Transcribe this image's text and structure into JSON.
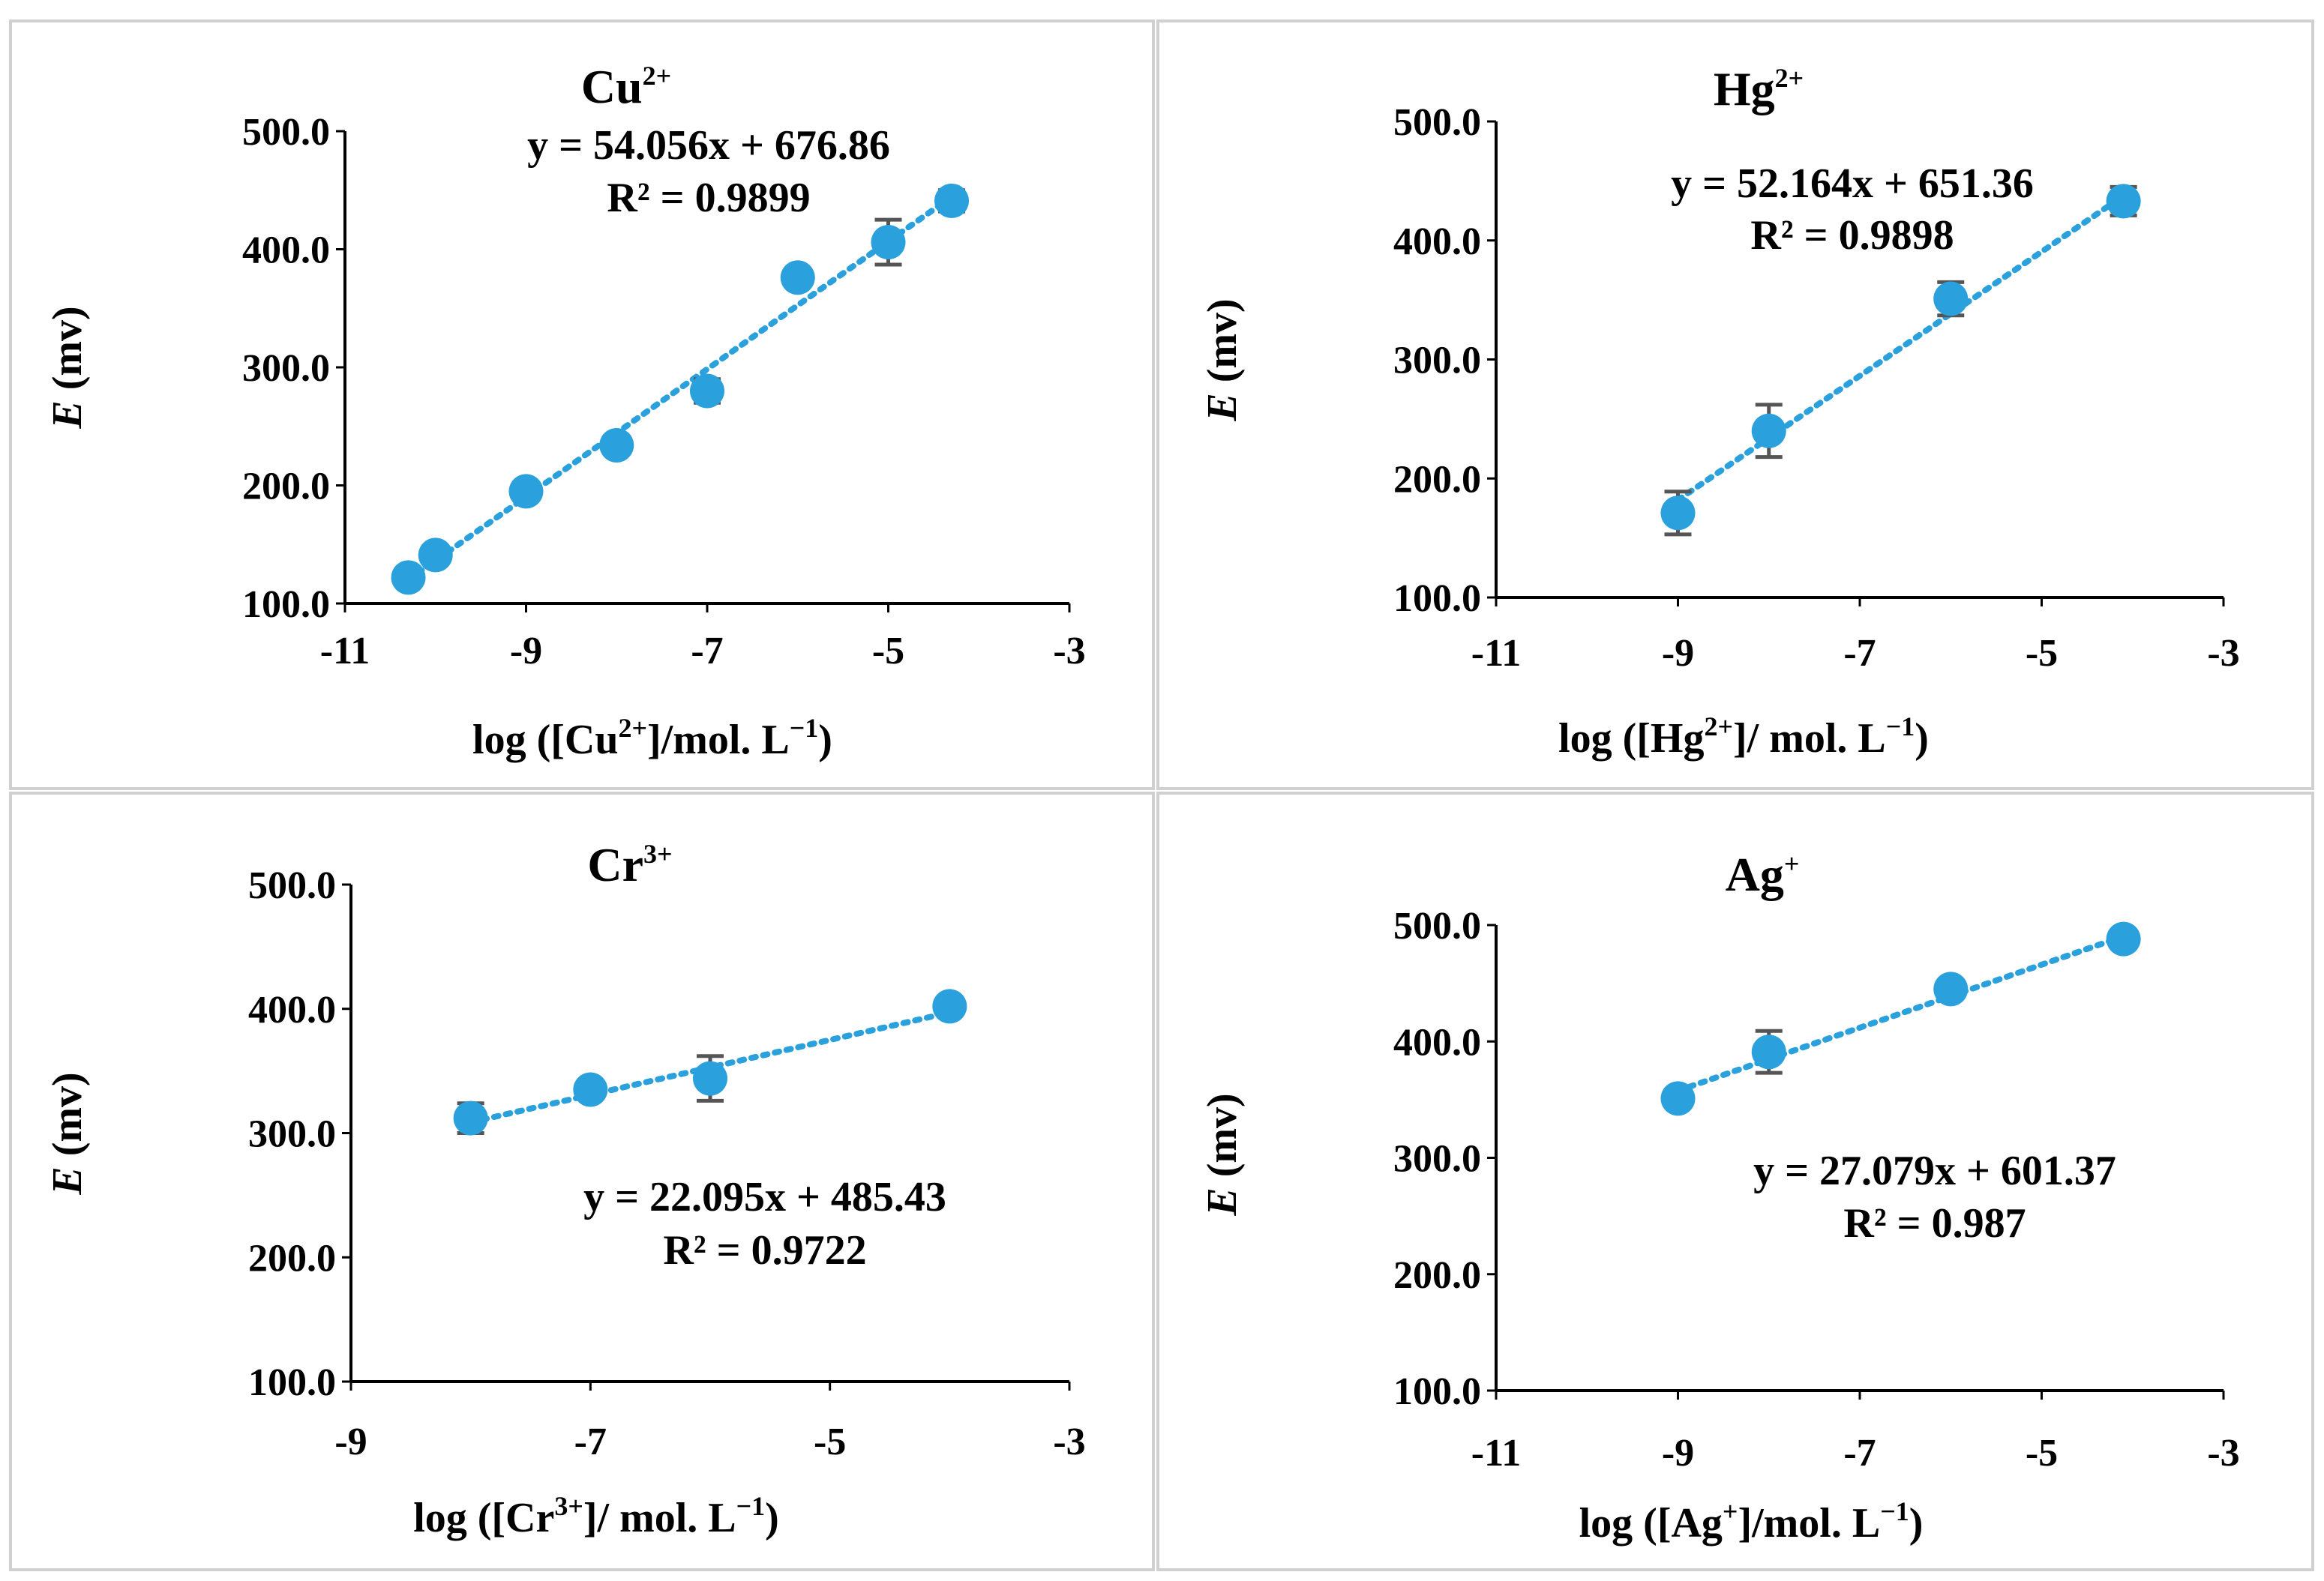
{
  "colors": {
    "marker": "#2aa0dc",
    "trendline": "#2aa0dc",
    "error_bar": "#555555",
    "panel_border": "#d0d0d0"
  },
  "chart_data": [
    {
      "id": "cu",
      "type": "scatter",
      "title_base": "Cu",
      "title_sup": "2+",
      "xlabel_pre": "log ([Cu",
      "xlabel_sup": "2+",
      "xlabel_post": "]/mol. L",
      "xlabel_sup2": "−1",
      "xlabel_end": ")",
      "ylabel_italic": "E",
      "ylabel_rest": " (mv)",
      "xlim": [
        -11,
        -3
      ],
      "ylim": [
        100,
        500
      ],
      "xticks": [
        -11,
        -9,
        -7,
        -5,
        -3
      ],
      "xtick_labels": [
        "-11",
        "-9",
        "-7",
        "-5",
        "-3"
      ],
      "yticks": [
        100,
        200,
        300,
        400,
        500
      ],
      "ytick_labels": [
        "100.0",
        "200.0",
        "300.0",
        "400.0",
        "500.0"
      ],
      "x": [
        -10.3,
        -10.0,
        -9.0,
        -8.0,
        -7.0,
        -6.0,
        -5.0,
        -4.3
      ],
      "y": [
        122,
        141,
        195,
        234,
        280,
        376,
        406,
        441
      ],
      "err": [
        0,
        0,
        0,
        0,
        10,
        0,
        19,
        9
      ],
      "trend": {
        "slope": 54.056,
        "intercept": 676.86,
        "x_from": -10.3,
        "x_to": -4.3
      },
      "equation": "y = 54.056x + 676.86",
      "r2": "R² = 0.9899"
    },
    {
      "id": "hg",
      "type": "scatter",
      "title_base": "Hg",
      "title_sup": "2+",
      "xlabel_pre": "log ([Hg",
      "xlabel_sup": "2+",
      "xlabel_post": "]/ mol. L",
      "xlabel_sup2": "−1",
      "xlabel_end": ")",
      "ylabel_italic": "E",
      "ylabel_rest": " (mv)",
      "xlim": [
        -11,
        -3
      ],
      "ylim": [
        100,
        500
      ],
      "xticks": [
        -11,
        -9,
        -7,
        -5,
        -3
      ],
      "xtick_labels": [
        "-11",
        "-9",
        "-7",
        "-5",
        "-3"
      ],
      "yticks": [
        100,
        200,
        300,
        400,
        500
      ],
      "ytick_labels": [
        "100.0",
        "200.0",
        "300.0",
        "400.0",
        "500.0"
      ],
      "x": [
        -9.0,
        -8.0,
        -6.0,
        -4.1
      ],
      "y": [
        171,
        240,
        351,
        433
      ],
      "err": [
        18,
        22,
        14,
        12
      ],
      "trend": {
        "slope": 52.164,
        "intercept": 651.36,
        "x_from": -9.0,
        "x_to": -4.1
      },
      "equation": "y = 52.164x + 651.36",
      "r2": "R² = 0.9898"
    },
    {
      "id": "cr",
      "type": "scatter",
      "title_base": "Cr",
      "title_sup": "3+",
      "xlabel_pre": "log ([Cr",
      "xlabel_sup": "3+",
      "xlabel_post": "]/ mol. L",
      "xlabel_sup2": "−1",
      "xlabel_end": ")",
      "ylabel_italic": "E",
      "ylabel_rest": " (mv)",
      "xlim": [
        -9,
        -3
      ],
      "ylim": [
        100,
        500
      ],
      "xticks": [
        -9,
        -7,
        -5,
        -3
      ],
      "xtick_labels": [
        "-9",
        "-7",
        "-5",
        "-3"
      ],
      "yticks": [
        100,
        200,
        300,
        400,
        500
      ],
      "ytick_labels": [
        "100.0",
        "200.0",
        "300.0",
        "400.0",
        "500.0"
      ],
      "x": [
        -8.0,
        -7.0,
        -6.0,
        -4.0
      ],
      "y": [
        312,
        335,
        344,
        402
      ],
      "err": [
        12,
        0,
        18,
        0
      ],
      "trend": {
        "slope": 22.095,
        "intercept": 485.43,
        "x_from": -8.0,
        "x_to": -4.0
      },
      "equation": "y = 22.095x + 485.43",
      "r2": "R² = 0.9722"
    },
    {
      "id": "ag",
      "type": "scatter",
      "title_base": "Ag",
      "title_sup": "+",
      "xlabel_pre": "log ([Ag",
      "xlabel_sup": "+",
      "xlabel_post": "]/mol. L",
      "xlabel_sup2": "−1",
      "xlabel_end": ")",
      "ylabel_italic": "E",
      "ylabel_rest": " (mv)",
      "xlim": [
        -11,
        -3
      ],
      "ylim": [
        100,
        500
      ],
      "xticks": [
        -11,
        -9,
        -7,
        -5,
        -3
      ],
      "xtick_labels": [
        "-11",
        "-9",
        "-7",
        "-5",
        "-3"
      ],
      "yticks": [
        100,
        200,
        300,
        400,
        500
      ],
      "ytick_labels": [
        "100.0",
        "200.0",
        "300.0",
        "400.0",
        "500.0"
      ],
      "x": [
        -9.0,
        -8.0,
        -6.0,
        -4.1
      ],
      "y": [
        351,
        391,
        445,
        488
      ],
      "err": [
        0,
        18,
        0,
        0
      ],
      "trend": {
        "slope": 27.079,
        "intercept": 601.37,
        "x_from": -9.0,
        "x_to": -4.1
      },
      "equation": "y = 27.079x + 601.37",
      "r2": "R² = 0.987"
    }
  ]
}
